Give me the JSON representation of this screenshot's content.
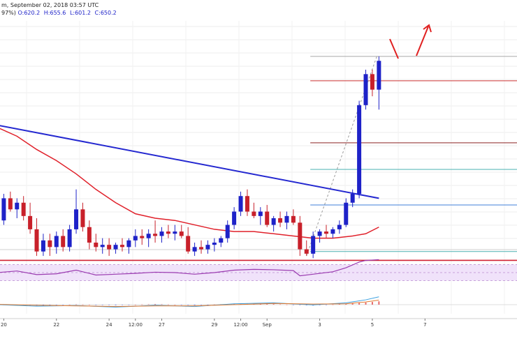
{
  "header": {
    "line1": "m, September 02, 2018 03:57 UTC",
    "line2_prefix": "97%) ",
    "ohlc": [
      {
        "label": "O:",
        "value": "620.2"
      },
      {
        "label": "H:",
        "value": "655.6"
      },
      {
        "label": "L:",
        "value": "601.2"
      },
      {
        "label": "C:",
        "value": "650.2"
      }
    ]
  },
  "colors": {
    "bull": "#1e22c8",
    "bear": "#c8202a",
    "sma": "#e0202a",
    "trendline": "#2428d0",
    "support": "#d02030",
    "fib_gray": "#a8a8a8",
    "fib_red": "#cc3333",
    "fib_dark": "#8a2020",
    "fib_teal": "#4ab0b0",
    "fib_blue": "#3f7fd8",
    "rsi_line": "#9a3ab0",
    "rsi_fill": "#f0e2fa",
    "macd_line": "#3ba0e0",
    "macd_signal": "#e07a30",
    "arrow": "#e02020"
  },
  "chart_data": {
    "type": "candlestick",
    "x_ticks": [
      {
        "label": "20",
        "xi": 1.0
      },
      {
        "label": "22",
        "xi": 9.0
      },
      {
        "label": "24",
        "xi": 17.0
      },
      {
        "label": "12:00",
        "xi": 21.0
      },
      {
        "label": "27",
        "xi": 25.0
      },
      {
        "label": "29",
        "xi": 33.0
      },
      {
        "label": "12:00",
        "xi": 37.0
      },
      {
        "label": "Sep",
        "xi": 41.0
      },
      {
        "label": "3",
        "xi": 49.0
      },
      {
        "label": "5",
        "xi": 57.0
      },
      {
        "label": "7",
        "xi": 65.0
      }
    ],
    "ylim": [
      572,
      672
    ],
    "candles": [
      [
        0,
        580,
        583,
        577,
        582
      ],
      [
        1,
        582,
        594,
        580,
        592
      ],
      [
        2,
        592,
        595,
        586,
        587
      ],
      [
        3,
        587,
        592,
        583,
        590
      ],
      [
        4,
        590,
        593,
        582,
        584
      ],
      [
        5,
        584,
        590,
        576,
        578
      ],
      [
        6,
        578,
        583,
        566,
        568
      ],
      [
        7,
        568,
        576,
        566,
        573
      ],
      [
        8,
        573,
        576,
        566,
        570
      ],
      [
        9,
        570,
        577,
        567,
        575
      ],
      [
        10,
        575,
        578,
        568,
        570
      ],
      [
        11,
        570,
        580,
        568,
        578
      ],
      [
        12,
        578,
        596,
        576,
        587
      ],
      [
        13,
        587,
        590,
        577,
        579
      ],
      [
        14,
        579,
        582,
        569,
        572
      ],
      [
        15,
        572,
        576,
        568,
        570
      ],
      [
        16,
        570,
        574,
        567,
        571
      ],
      [
        17,
        571,
        574,
        566,
        569
      ],
      [
        18,
        569,
        572,
        567,
        571
      ],
      [
        19,
        571,
        574,
        568,
        570
      ],
      [
        20,
        570,
        574,
        567,
        573
      ],
      [
        21,
        573,
        578,
        570,
        575
      ],
      [
        22,
        575,
        578,
        571,
        574
      ],
      [
        23,
        574,
        578,
        570,
        576
      ],
      [
        24,
        576,
        582,
        572,
        575
      ],
      [
        25,
        575,
        579,
        572,
        577
      ],
      [
        26,
        577,
        580,
        574,
        576
      ],
      [
        27,
        576,
        580,
        573,
        577
      ],
      [
        28,
        577,
        580,
        574,
        575
      ],
      [
        29,
        575,
        579,
        567,
        568
      ],
      [
        30,
        568,
        572,
        566,
        570
      ],
      [
        31,
        570,
        573,
        567,
        569
      ],
      [
        32,
        569,
        573,
        567,
        571
      ],
      [
        33,
        571,
        574,
        568,
        572
      ],
      [
        34,
        572,
        575,
        570,
        574
      ],
      [
        35,
        574,
        582,
        572,
        580
      ],
      [
        36,
        580,
        588,
        578,
        586
      ],
      [
        37,
        586,
        595,
        584,
        593
      ],
      [
        38,
        593,
        596,
        584,
        586
      ],
      [
        39,
        586,
        590,
        583,
        584
      ],
      [
        40,
        584,
        588,
        580,
        586
      ],
      [
        41,
        586,
        589,
        579,
        580
      ],
      [
        42,
        580,
        584,
        577,
        583
      ],
      [
        43,
        583,
        586,
        579,
        581
      ],
      [
        44,
        581,
        586,
        578,
        584
      ],
      [
        45,
        584,
        587,
        580,
        581
      ],
      [
        46,
        581,
        584,
        566,
        569
      ],
      [
        47,
        569,
        573,
        566,
        567
      ],
      [
        48,
        567,
        577,
        565,
        575
      ],
      [
        49,
        575,
        578,
        572,
        577
      ],
      [
        50,
        577,
        580,
        574,
        576
      ],
      [
        51,
        576,
        579,
        574,
        578
      ],
      [
        52,
        578,
        582,
        576,
        580
      ],
      [
        53,
        580,
        592,
        579,
        590
      ],
      [
        54,
        590,
        596,
        588,
        594
      ],
      [
        55,
        594,
        636,
        592,
        634
      ],
      [
        56,
        634,
        650,
        632,
        648
      ],
      [
        57,
        648,
        650,
        638,
        641
      ],
      [
        58,
        641,
        656,
        632,
        654
      ]
    ],
    "sma": [
      [
        0,
        624
      ],
      [
        3,
        620
      ],
      [
        6,
        614
      ],
      [
        9,
        609
      ],
      [
        12,
        603
      ],
      [
        15,
        596
      ],
      [
        18,
        590
      ],
      [
        21,
        585
      ],
      [
        24,
        583
      ],
      [
        27,
        582
      ],
      [
        30,
        580
      ],
      [
        33,
        578
      ],
      [
        36,
        577
      ],
      [
        39,
        577
      ],
      [
        42,
        576
      ],
      [
        45,
        575
      ],
      [
        48,
        574
      ],
      [
        51,
        574
      ],
      [
        54,
        575
      ],
      [
        56,
        576
      ],
      [
        58,
        579
      ]
    ],
    "trendline": [
      [
        0,
        625
      ],
      [
        58,
        592
      ]
    ],
    "support_level": 564,
    "fib_levels": [
      {
        "value": 656,
        "color": "fib_gray"
      },
      {
        "value": 645,
        "color": "fib_red"
      },
      {
        "value": 617,
        "color": "fib_dark"
      },
      {
        "value": 605,
        "color": "fib_teal"
      },
      {
        "value": 589,
        "color": "fib_blue"
      },
      {
        "value": 568,
        "color": "fib_teal"
      }
    ],
    "rsi": [
      [
        0,
        50
      ],
      [
        3,
        54
      ],
      [
        6,
        45
      ],
      [
        9,
        47
      ],
      [
        12,
        56
      ],
      [
        15,
        44
      ],
      [
        18,
        46
      ],
      [
        21,
        48
      ],
      [
        24,
        51
      ],
      [
        27,
        50
      ],
      [
        30,
        46
      ],
      [
        33,
        50
      ],
      [
        36,
        56
      ],
      [
        39,
        58
      ],
      [
        42,
        57
      ],
      [
        45,
        55
      ],
      [
        46,
        42
      ],
      [
        48,
        46
      ],
      [
        51,
        52
      ],
      [
        53,
        62
      ],
      [
        55,
        76
      ],
      [
        56,
        80
      ],
      [
        58,
        82
      ]
    ],
    "rsi_range": [
      0,
      100
    ],
    "macd": [
      [
        0,
        0.0
      ],
      [
        6,
        -0.5
      ],
      [
        12,
        -0.3
      ],
      [
        18,
        -0.8
      ],
      [
        24,
        -0.2
      ],
      [
        30,
        -0.6
      ],
      [
        36,
        0.3
      ],
      [
        42,
        0.6
      ],
      [
        48,
        -0.1
      ],
      [
        53,
        0.6
      ],
      [
        56,
        1.6
      ],
      [
        58,
        2.6
      ]
    ],
    "macd_signal": [
      [
        0,
        0.1
      ],
      [
        6,
        -0.2
      ],
      [
        12,
        -0.4
      ],
      [
        18,
        -0.6
      ],
      [
        24,
        -0.4
      ],
      [
        30,
        -0.4
      ],
      [
        36,
        0.0
      ],
      [
        42,
        0.4
      ],
      [
        48,
        0.2
      ],
      [
        53,
        0.3
      ],
      [
        56,
        0.9
      ],
      [
        58,
        1.5
      ]
    ],
    "macd_range": [
      -3,
      3
    ]
  }
}
